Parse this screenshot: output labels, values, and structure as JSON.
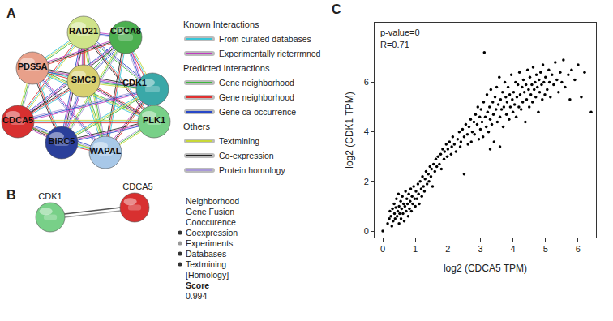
{
  "panel_a": {
    "label": "A",
    "nodes": [
      {
        "label": "RAD21",
        "color": "#cfe38a"
      },
      {
        "label": "CDCA8",
        "color": "#4caf50"
      },
      {
        "label": "PDS5A",
        "color": "#e8a08a"
      },
      {
        "label": "SMC3",
        "color": "#d8d070"
      },
      {
        "label": "CDK1",
        "color": "#3aa8a8"
      },
      {
        "label": "CDCA5",
        "color": "#d83030"
      },
      {
        "label": "BIRC5",
        "color": "#2a3f9a"
      },
      {
        "label": "WAPAL",
        "color": "#a8c8e8"
      },
      {
        "label": "PLK1",
        "color": "#78d088"
      }
    ],
    "legend": [
      {
        "title": "Known Interactions",
        "items": [
          {
            "label": "From curated databases",
            "color": "#36c6d8"
          },
          {
            "label": "Experimentally rieterrmned",
            "color": "#c03cc0"
          }
        ]
      },
      {
        "title": "Predicted Interactions",
        "items": [
          {
            "label": "Gene neighborhood",
            "color": "#3cb83c"
          },
          {
            "label": "Gene neighborhood",
            "color": "#e03030"
          },
          {
            "label": "Gene ca-occurrence",
            "color": "#2848c8"
          }
        ]
      },
      {
        "title": "Others",
        "items": [
          {
            "label": "Textmining",
            "color": "#c8d838"
          },
          {
            "label": "Co-expression",
            "color": "#222222"
          },
          {
            "label": "Protein homology",
            "color": "#a898d8"
          }
        ]
      }
    ]
  },
  "panel_b": {
    "label": "B",
    "nodes": [
      {
        "label": "CDK1",
        "color": "#78d088"
      },
      {
        "label": "CDCA5",
        "color": "#d83030"
      }
    ],
    "evidence": [
      {
        "label": "Neighborhood",
        "marked": false
      },
      {
        "label": "Gene Fusion",
        "marked": false
      },
      {
        "label": "Cooccurence",
        "marked": false
      },
      {
        "label": "Coexpression",
        "marked": true
      },
      {
        "label": "Experiments",
        "marked": true
      },
      {
        "label": "Databases",
        "marked": true
      },
      {
        "label": "Textmining",
        "marked": true
      },
      {
        "label": "[Homology]",
        "marked": false
      }
    ],
    "score_label": "Score",
    "score": "0.994"
  },
  "panel_c": {
    "label": "C"
  },
  "chart_data": {
    "type": "scatter",
    "xlabel": "log2 (CDCA5 TPM)",
    "ylabel": "log2 (CDK1 TPM)",
    "annotations": [
      "p-value=0",
      "R=0.71"
    ],
    "color": "#000000",
    "marker": "circle",
    "grid": false,
    "xlim": [
      -0.25,
      6.55
    ],
    "ylim": [
      -0.26,
      8.4
    ],
    "xticks": [
      0,
      1,
      2,
      3,
      4,
      5,
      6
    ],
    "yticks": [
      0,
      2,
      4,
      6
    ],
    "x": [
      0,
      0.15,
      0.2,
      0.22,
      0.25,
      0.28,
      0.3,
      0.32,
      0.35,
      0.36,
      0.38,
      0.4,
      0.42,
      0.44,
      0.46,
      0.48,
      0.5,
      0.5,
      0.52,
      0.55,
      0.56,
      0.58,
      0.6,
      0.62,
      0.64,
      0.66,
      0.68,
      0.7,
      0.72,
      0.74,
      0.76,
      0.78,
      0.8,
      0.82,
      0.84,
      0.86,
      0.88,
      0.9,
      0.92,
      0.95,
      0.98,
      1.0,
      1.02,
      1.05,
      1.08,
      1.1,
      1.12,
      1.15,
      1.18,
      1.2,
      1.22,
      1.25,
      1.28,
      1.3,
      1.33,
      1.36,
      1.4,
      1.42,
      1.45,
      1.48,
      1.5,
      1.53,
      1.56,
      1.6,
      1.63,
      1.66,
      1.7,
      1.74,
      1.78,
      1.8,
      1.84,
      1.88,
      1.9,
      1.95,
      1.98,
      2.0,
      2.05,
      2.1,
      2.12,
      2.15,
      2.2,
      2.25,
      2.3,
      2.35,
      2.38,
      2.4,
      2.45,
      2.5,
      2.5,
      2.55,
      2.6,
      2.62,
      2.65,
      2.7,
      2.72,
      2.75,
      2.8,
      2.82,
      2.85,
      2.9,
      2.92,
      2.95,
      2.98,
      3.0,
      3.02,
      3.05,
      3.08,
      3.1,
      3.12,
      3.15,
      3.18,
      3.2,
      3.22,
      3.25,
      3.28,
      3.3,
      3.32,
      3.35,
      3.38,
      3.4,
      3.42,
      3.45,
      3.48,
      3.5,
      3.52,
      3.55,
      3.58,
      3.6,
      3.62,
      3.65,
      3.68,
      3.7,
      3.72,
      3.75,
      3.78,
      3.8,
      3.82,
      3.85,
      3.88,
      3.9,
      3.92,
      3.95,
      3.98,
      4.0,
      3.3,
      3.6,
      4.02,
      4.05,
      4.08,
      4.1,
      4.12,
      4.15,
      4.18,
      4.2,
      4.22,
      4.25,
      4.28,
      4.3,
      4.32,
      4.35,
      4.38,
      4.4,
      4.42,
      4.45,
      4.48,
      4.5,
      4.52,
      4.55,
      4.58,
      4.6,
      4.62,
      4.65,
      4.68,
      4.7,
      4.72,
      4.75,
      4.78,
      4.8,
      4.82,
      4.85,
      4.88,
      4.9,
      4.92,
      4.95,
      4.98,
      5.0,
      5.05,
      5.1,
      5.12,
      5.15,
      5.2,
      5.25,
      5.3,
      5.35,
      5.4,
      5.45,
      5.5,
      5.55,
      5.6,
      5.7,
      5.75,
      5.8,
      5.9,
      6.0,
      6.1,
      6.2,
      6.4
    ],
    "values": [
      0,
      0.3,
      0.5,
      0.8,
      0.6,
      0.2,
      0.9,
      0.4,
      1.1,
      0.7,
      0.5,
      0.95,
      1.3,
      0.6,
      0.8,
      1.5,
      0.3,
      1.0,
      0.7,
      1.2,
      0.5,
      0.9,
      1.4,
      0.7,
      1.1,
      0.4,
      1.0,
      1.6,
      0.8,
      1.3,
      1.1,
      0.6,
      1.5,
      0.9,
      1.2,
      1.7,
      0.8,
      1.4,
      1.1,
      1.8,
      1.3,
      1.0,
      1.6,
      1.3,
      1.9,
      1.5,
      1.1,
      2.0,
      1.7,
      1.4,
      2.2,
      1.8,
      1.6,
      2.1,
      2.4,
      1.9,
      2.3,
      2.0,
      2.6,
      2.2,
      2.5,
      1.8,
      2.7,
      2.4,
      2.9,
      2.6,
      3.0,
      2.7,
      3.1,
      2.5,
      3.3,
      2.9,
      3.2,
      3.5,
      3.0,
      3.3,
      3.6,
      3.1,
      3.4,
      3.8,
      3.5,
      3.2,
      3.7,
      4.0,
      3.4,
      3.6,
      4.1,
      3.8,
      2.3,
      4.3,
      3.9,
      3.5,
      4.2,
      4.5,
      3.6,
      4.0,
      4.4,
      3.9,
      4.7,
      4.3,
      5.0,
      3.7,
      4.6,
      4.1,
      4.9,
      4.4,
      3.8,
      5.2,
      7.2,
      4.6,
      4.2,
      5.5,
      4.8,
      4.0,
      5.0,
      4.5,
      5.7,
      4.3,
      5.2,
      4.7,
      3.6,
      5.4,
      4.9,
      5.8,
      4.4,
      5.1,
      6.2,
      4.6,
      5.3,
      4.9,
      5.6,
      4.2,
      5.0,
      6.0,
      5.4,
      4.7,
      5.2,
      5.8,
      4.5,
      5.5,
      5.0,
      6.3,
      5.3,
      4.8,
      3.3,
      3.4,
      5.6,
      5.1,
      6.0,
      4.6,
      5.4,
      5.9,
      5.0,
      6.4,
      5.5,
      4.9,
      5.8,
      5.2,
      6.1,
      5.6,
      4.4,
      5.9,
      5.3,
      6.5,
      5.7,
      5.0,
      6.2,
      5.5,
      5.9,
      5.2,
      6.6,
      5.7,
      6.0,
      5.4,
      6.3,
      5.8,
      4.8,
      6.1,
      5.6,
      6.4,
      5.9,
      5.3,
      6.7,
      6.0,
      5.5,
      6.2,
      5.7,
      6.5,
      6.0,
      5.4,
      6.3,
      5.9,
      6.8,
      6.1,
      5.6,
      6.4,
      6.0,
      6.9,
      5.8,
      6.3,
      5.3,
      6.5,
      6.1,
      6.7,
      5.4,
      6.4,
      4.8
    ]
  }
}
